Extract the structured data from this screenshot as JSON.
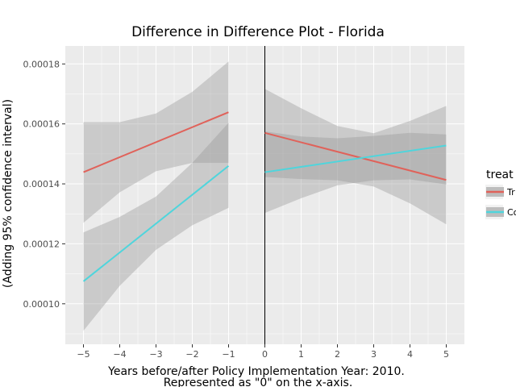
{
  "chart_data": {
    "type": "line",
    "title": "Difference in Difference Plot - Florida",
    "xlabel_line1": "Years before/after Policy Implementation Year: 2010.",
    "xlabel_line2": "Represented as \"0\" on the x-axis.",
    "ylabel": "(Adding 95% confidence interval)",
    "x_ticks": [
      -5,
      -4,
      -3,
      -2,
      -1,
      0,
      1,
      2,
      3,
      4,
      5
    ],
    "x_tick_labels": [
      "−5",
      "−4",
      "−3",
      "−2",
      "−1",
      "0",
      "1",
      "2",
      "3",
      "4",
      "5"
    ],
    "y_ticks": [
      0.0001,
      0.00012,
      0.00014,
      0.00016,
      0.00018
    ],
    "y_tick_labels": [
      "0.00010",
      "0.00012",
      "0.00014",
      "0.00016",
      "0.00018"
    ],
    "xlim": [
      -5.5,
      5.5
    ],
    "ylim": [
      8.65e-05,
      0.000186
    ],
    "vline_x": 0,
    "legend": {
      "title": "treat",
      "placement": "right",
      "entries": [
        {
          "label": "Tr",
          "color": "#e0625a"
        },
        {
          "label": "Co",
          "color": "#4fd5dc"
        }
      ]
    },
    "band_color": "#999999",
    "segments": [
      {
        "series": "Treatment",
        "period": "pre",
        "color": "#e0625a",
        "x": [
          -5,
          -1
        ],
        "y": [
          0.0001439,
          0.0001639
        ],
        "ci_x": [
          -5,
          -4,
          -3,
          -2,
          -1
        ],
        "ci_lower": [
          0.000127,
          0.0001372,
          0.0001442,
          0.000147,
          0.000147
        ],
        "ci_upper": [
          0.0001606,
          0.0001606,
          0.0001635,
          0.0001707,
          0.0001808
        ]
      },
      {
        "series": "Control",
        "period": "pre",
        "color": "#4fd5dc",
        "x": [
          -5,
          -1
        ],
        "y": [
          0.0001075,
          0.000146
        ],
        "ci_x": [
          -5,
          -4,
          -3,
          -2,
          -1
        ],
        "ci_lower": [
          9.1e-05,
          0.000106,
          0.000118,
          0.0001262,
          0.000132
        ],
        "ci_upper": [
          0.0001238,
          0.000129,
          0.0001358,
          0.000147,
          0.0001604
        ]
      },
      {
        "series": "Treatment",
        "period": "post",
        "color": "#e0625a",
        "x": [
          0,
          5
        ],
        "y": [
          0.000157,
          0.0001413
        ],
        "ci_x": [
          0,
          1,
          2,
          3,
          4,
          5
        ],
        "ci_lower": [
          0.0001423,
          0.0001416,
          0.0001412,
          0.0001391,
          0.0001335,
          0.0001265
        ],
        "ci_upper": [
          0.0001717,
          0.0001652,
          0.0001593,
          0.0001569,
          0.000161,
          0.000166
        ]
      },
      {
        "series": "Control",
        "period": "post",
        "color": "#4fd5dc",
        "x": [
          0,
          5
        ],
        "y": [
          0.0001439,
          0.0001528
        ],
        "ci_x": [
          0,
          1,
          2,
          3,
          4,
          5
        ],
        "ci_lower": [
          0.0001303,
          0.0001352,
          0.0001395,
          0.0001412,
          0.0001415,
          0.0001398
        ],
        "ci_upper": [
          0.0001575,
          0.0001558,
          0.0001552,
          0.000156,
          0.000157,
          0.0001565
        ]
      }
    ]
  }
}
